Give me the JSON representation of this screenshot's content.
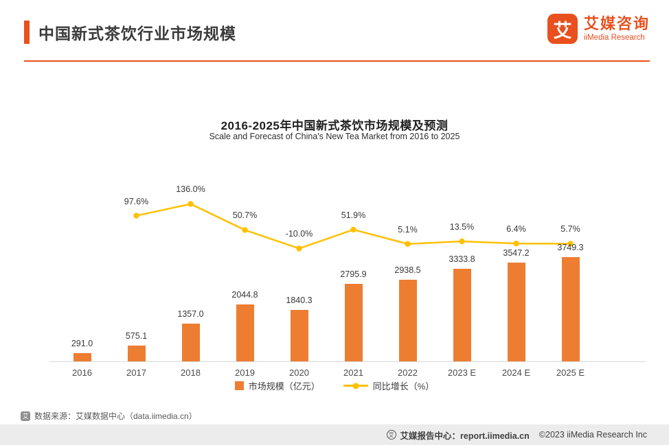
{
  "header": {
    "title": "中国新式茶饮行业市场规模",
    "logo": {
      "glyph": "艾",
      "brand_cn": "艾媒咨询",
      "brand_en": "iiMedia Research"
    }
  },
  "chart_data": {
    "type": "bar",
    "title": "2016-2025年中国新式茶饮市场规模及预测",
    "subtitle": "Scale and Forecast of China's New Tea Market from 2016 to 2025",
    "categories": [
      "2016",
      "2017",
      "2018",
      "2019",
      "2020",
      "2021",
      "2022",
      "2023 E",
      "2024 E",
      "2025 E"
    ],
    "series": [
      {
        "name": "市场规模（亿元）",
        "type": "bar",
        "color": "#ED7D31",
        "values": [
          291.0,
          575.1,
          1357.0,
          2044.8,
          1840.3,
          2795.9,
          2938.5,
          3333.8,
          3547.2,
          3749.3
        ]
      },
      {
        "name": "同比增长（%）",
        "type": "line",
        "color": "#FFC000",
        "values": [
          null,
          97.6,
          136.0,
          50.7,
          -10.0,
          51.9,
          5.1,
          13.5,
          6.4,
          5.7
        ]
      }
    ],
    "value_label_decimals": 1,
    "legend_position": "bottom",
    "grid": false,
    "ylabel": "",
    "xlabel": ""
  },
  "source_note": "数据来源：艾媒数据中心（data.iimedia.cn）",
  "footer": {
    "report_center": "艾媒报告中心：report.iimedia.cn",
    "copyright": "©2023  iiMedia Research  Inc"
  },
  "colors": {
    "accent": "#E8501E",
    "bar": "#ED7D31",
    "line": "#FFC000",
    "footer_bg": "#ECECEC"
  }
}
